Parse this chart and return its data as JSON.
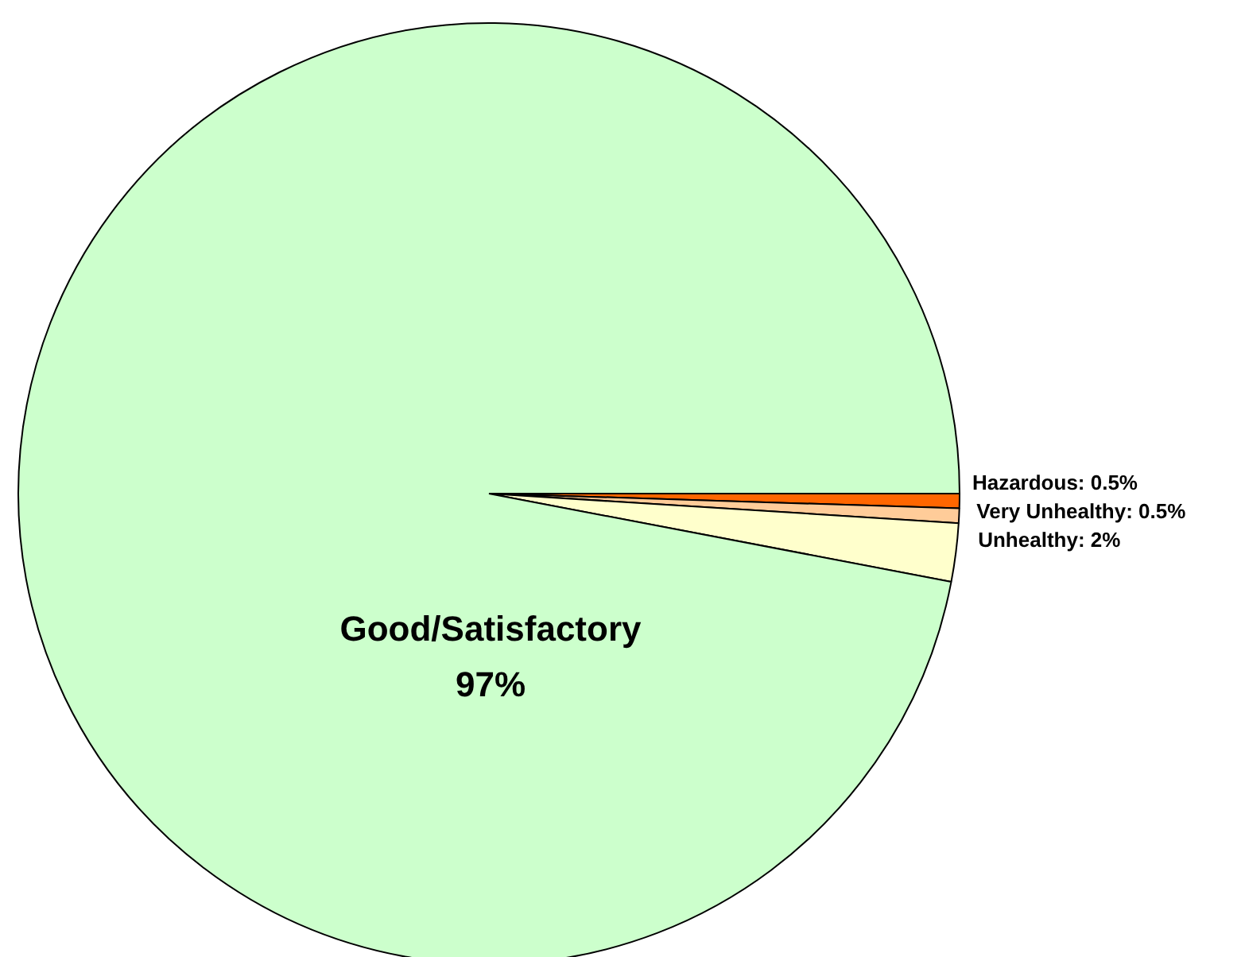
{
  "chart_data": {
    "type": "pie",
    "categories": [
      "Hazardous",
      "Very Unhealthy",
      "Unhealthy",
      "Good/Satisfactory"
    ],
    "values": [
      0.5,
      0.5,
      2,
      97
    ],
    "value_labels": [
      "0.5%",
      "0.5%",
      "2%",
      "97%"
    ],
    "colors": [
      "#ff6600",
      "#ffcc99",
      "#ffffcc",
      "#ccffcc"
    ]
  }
}
